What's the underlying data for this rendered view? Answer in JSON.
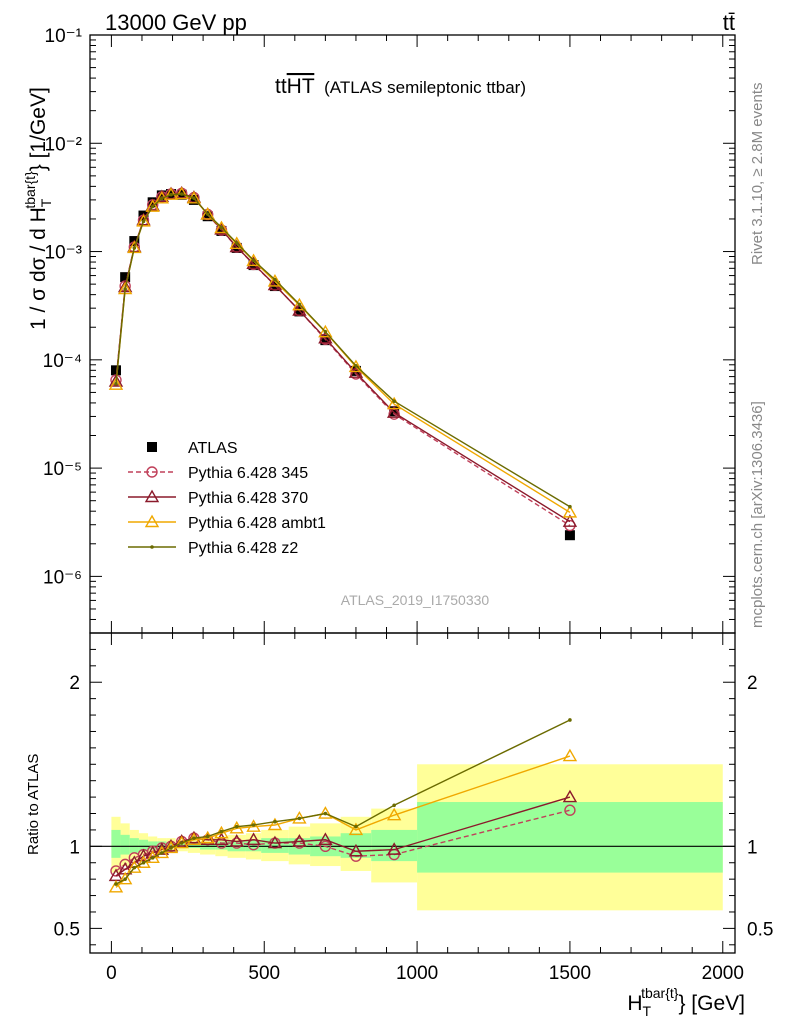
{
  "header": {
    "left": "13000 GeV pp",
    "right": "tt̄"
  },
  "side_labels": {
    "rivet": "Rivet 3.1.10, ≥ 2.8M events",
    "mcplots": "mcplots.cern.ch [arXiv:1306.3436]"
  },
  "chart_data": [
    {
      "type": "line",
      "title": "tt̅H̅T̅ (ATLAS semileptonic ttbar)",
      "title_main": "tt",
      "title_over": "HT",
      "title_rest": "(ATLAS semileptonic ttbar)",
      "watermark": "ATLAS_2019_I1750330",
      "ylabel": "1 / σ dσ / d H_T^{tbar{t}} [1/GeV]",
      "ylabel_main": "1 / σ dσ / d H",
      "ylabel_sub": "T",
      "ylabel_sup": "tbar{t}",
      "ylabel_end": "} [1/GeV]",
      "xlim": [
        -70,
        2040
      ],
      "ylim": [
        3e-07,
        0.1
      ],
      "yscale": "log",
      "yticks": [
        "10⁻⁶",
        "10⁻⁵",
        "10⁻⁴",
        "10⁻³",
        "10⁻²",
        "10⁻¹"
      ],
      "legend_position": "middle-left",
      "x": [
        15,
        45,
        75,
        105,
        135,
        165,
        195,
        230,
        270,
        315,
        360,
        410,
        465,
        535,
        615,
        700,
        800,
        925,
        1500
      ],
      "series": [
        {
          "name": "ATLAS",
          "color": "#000000",
          "marker": "square",
          "values": [
            8e-05,
            0.00058,
            0.00125,
            0.00215,
            0.00285,
            0.0033,
            0.0034,
            0.00335,
            0.003,
            0.00212,
            0.00155,
            0.00108,
            0.00075,
            0.00048,
            0.00028,
            0.000152,
            7.9e-05,
            3.35e-05,
            2.4e-06
          ]
        },
        {
          "name": "Pythia 6.428 345",
          "color": "#c0405a",
          "marker": "circle-open",
          "dash": true,
          "values": [
            6.5e-05,
            0.00048,
            0.0011,
            0.00195,
            0.0027,
            0.0032,
            0.0034,
            0.00345,
            0.00315,
            0.0022,
            0.00158,
            0.0011,
            0.00076,
            0.00049,
            0.000285,
            0.000155,
            7.4e-05,
            3.15e-05,
            2.95e-06
          ]
        },
        {
          "name": "Pythia 6.428 370",
          "color": "#8b1a2b",
          "marker": "triangle-open",
          "values": [
            6.3e-05,
            0.00047,
            0.0011,
            0.00195,
            0.00265,
            0.0032,
            0.0034,
            0.00345,
            0.00315,
            0.0022,
            0.0016,
            0.0011,
            0.00077,
            0.00049,
            0.000285,
            0.000158,
            7.6e-05,
            3.25e-05,
            3.2e-06
          ]
        },
        {
          "name": "Pythia 6.428 ambt1",
          "color": "#f0a800",
          "marker": "triangle-open",
          "values": [
            5.9e-05,
            0.00045,
            0.00108,
            0.0019,
            0.0026,
            0.0031,
            0.00335,
            0.0034,
            0.0031,
            0.0022,
            0.00165,
            0.00118,
            0.00082,
            0.00053,
            0.00032,
            0.00018,
            8.6e-05,
            3.9e-05,
            3.9e-06
          ]
        },
        {
          "name": "Pythia 6.428 z2",
          "color": "#6b6b00",
          "marker": "dot",
          "values": [
            6e-05,
            0.00045,
            0.00108,
            0.0019,
            0.0026,
            0.0031,
            0.00335,
            0.0034,
            0.00312,
            0.00222,
            0.00167,
            0.0012,
            0.00083,
            0.00055,
            0.000325,
            0.000182,
            8.8e-05,
            4.15e-05,
            4.4e-06
          ]
        }
      ]
    },
    {
      "type": "line",
      "ylabel": "Ratio to ATLAS",
      "xlabel": "H_T^{tbar{t}} [GeV]",
      "xlabel_main": "H",
      "xlabel_sub": "T",
      "xlabel_sup": "tbar{t}",
      "xlabel_end": "} [GeV]",
      "xlim": [
        -70,
        2040
      ],
      "ylim": [
        0.35,
        2.3
      ],
      "xticks": [
        "0",
        "500",
        "1000",
        "1500",
        "2000"
      ],
      "yticks": [
        "0.5",
        "1",
        "2"
      ],
      "bands": {
        "edges": [
          0,
          30,
          60,
          90,
          120,
          150,
          180,
          210,
          250,
          290,
          340,
          380,
          440,
          490,
          580,
          650,
          750,
          850,
          1000,
          2000
        ],
        "green_lo": [
          0.93,
          0.95,
          0.96,
          0.97,
          0.98,
          0.98,
          0.99,
          0.99,
          0.99,
          0.98,
          0.98,
          0.97,
          0.97,
          0.96,
          0.95,
          0.94,
          0.93,
          0.91,
          0.84
        ],
        "green_hi": [
          1.1,
          1.07,
          1.05,
          1.04,
          1.03,
          1.03,
          1.02,
          1.02,
          1.02,
          1.02,
          1.03,
          1.03,
          1.04,
          1.05,
          1.05,
          1.06,
          1.08,
          1.1,
          1.27
        ],
        "yellow_lo": [
          0.84,
          0.88,
          0.91,
          0.94,
          0.96,
          0.96,
          0.97,
          0.97,
          0.96,
          0.95,
          0.94,
          0.93,
          0.92,
          0.91,
          0.89,
          0.88,
          0.85,
          0.78,
          0.61
        ],
        "yellow_hi": [
          1.18,
          1.14,
          1.1,
          1.08,
          1.06,
          1.05,
          1.05,
          1.04,
          1.04,
          1.05,
          1.06,
          1.07,
          1.08,
          1.1,
          1.12,
          1.14,
          1.18,
          1.23,
          1.5
        ]
      },
      "x": [
        15,
        45,
        75,
        105,
        135,
        165,
        195,
        230,
        270,
        315,
        360,
        410,
        465,
        535,
        615,
        700,
        800,
        925,
        1500
      ],
      "series": [
        {
          "name": "Pythia 6.428 345",
          "color": "#c0405a",
          "marker": "circle-open",
          "dash": true,
          "values": [
            0.85,
            0.89,
            0.93,
            0.95,
            0.97,
            0.99,
            1.0,
            1.03,
            1.05,
            1.04,
            1.02,
            1.02,
            1.01,
            1.02,
            1.02,
            1.0,
            0.94,
            0.95,
            1.22
          ]
        },
        {
          "name": "Pythia 6.428 370",
          "color": "#8b1a2b",
          "marker": "triangle-open",
          "values": [
            0.82,
            0.86,
            0.9,
            0.94,
            0.96,
            0.98,
            1.0,
            1.03,
            1.05,
            1.04,
            1.04,
            1.03,
            1.04,
            1.02,
            1.03,
            1.04,
            0.97,
            0.98,
            1.3
          ]
        },
        {
          "name": "Pythia 6.428 ambt1",
          "color": "#f0a800",
          "marker": "triangle-open",
          "values": [
            0.75,
            0.8,
            0.87,
            0.9,
            0.93,
            0.96,
            0.99,
            1.02,
            1.04,
            1.05,
            1.08,
            1.11,
            1.12,
            1.13,
            1.17,
            1.2,
            1.1,
            1.19,
            1.55
          ]
        },
        {
          "name": "Pythia 6.428 z2",
          "color": "#6b6b00",
          "marker": "dot",
          "values": [
            0.77,
            0.8,
            0.87,
            0.9,
            0.93,
            0.96,
            0.99,
            1.02,
            1.05,
            1.06,
            1.09,
            1.12,
            1.13,
            1.15,
            1.17,
            1.2,
            1.12,
            1.25,
            1.77
          ]
        }
      ]
    }
  ]
}
